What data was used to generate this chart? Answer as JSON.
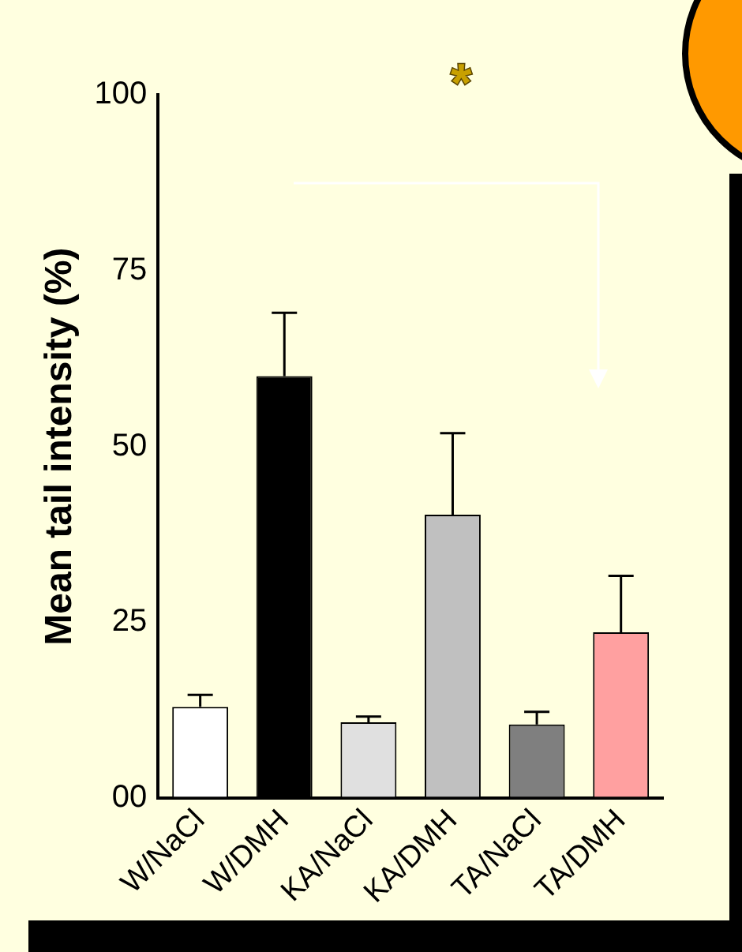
{
  "chart_data": {
    "type": "bar",
    "ylabel": "Mean tail intensity (%)",
    "categories": [
      "W/NaCl",
      "W/DMH",
      "KA/NaCl",
      "KA/DMH",
      "TA/NaCl",
      "TA/DMH"
    ],
    "values": [
      13,
      60,
      10.8,
      40.3,
      10.5,
      23.6
    ],
    "colors": [
      "#ffffff",
      "#000000",
      "#e0e0e0",
      "#c0c0c0",
      "#7f7f7f",
      "#ffa0a0"
    ],
    "errors": [
      1.7,
      9,
      0.8,
      11.6,
      1.8,
      8
    ],
    "ylim": [
      0,
      100
    ],
    "yticks": [
      {
        "value": 0,
        "label": "00"
      },
      25,
      50,
      75,
      100
    ],
    "grid": false,
    "legend": false,
    "annotations": [
      "*"
    ]
  }
}
